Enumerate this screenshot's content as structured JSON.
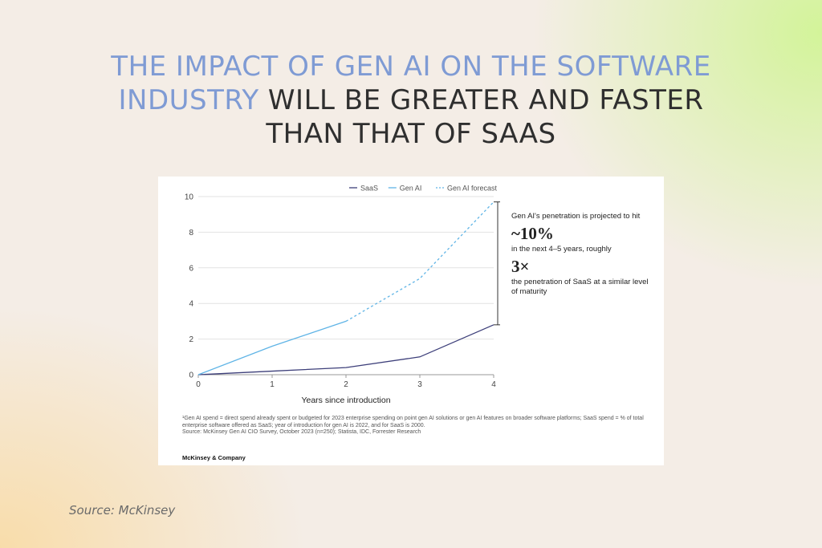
{
  "headline": {
    "highlight": "THE IMPACT OF GEN AI ON THE SOFTWARE INDUSTRY",
    "rest": " WILL BE GREATER AND FASTER THAN THAT OF SAAS"
  },
  "colors": {
    "highlight": "#7f9bd4",
    "saas": "#3d3f7a",
    "gen_ai": "#5fb4e6",
    "forecast": "#5fb4e6"
  },
  "chart_data": {
    "type": "line",
    "xlabel": "Years since introduction",
    "ylabel": "",
    "x": [
      0,
      1,
      2,
      3,
      4
    ],
    "xlim": [
      0,
      4
    ],
    "ylim": [
      0,
      10
    ],
    "yticks": [
      0,
      2,
      4,
      6,
      8,
      10
    ],
    "xticks": [
      0,
      1,
      2,
      3,
      4
    ],
    "grid": true,
    "legend_position": "top",
    "series": [
      {
        "name": "SaaS",
        "x": [
          0,
          1,
          2,
          3,
          4
        ],
        "values": [
          0,
          0.2,
          0.4,
          1.0,
          2.8
        ],
        "style": "solid"
      },
      {
        "name": "Gen AI",
        "x": [
          0,
          1,
          2
        ],
        "values": [
          0,
          1.6,
          3.0
        ],
        "style": "solid"
      },
      {
        "name": "Gen AI forecast",
        "x": [
          2,
          3,
          4
        ],
        "values": [
          3.0,
          5.4,
          9.7
        ],
        "style": "dashed"
      }
    ]
  },
  "annotation": {
    "line1": "Gen AI's penetration is projected to hit",
    "big1": "~10%",
    "line2": "in the next 4–5 years, roughly",
    "big2": "3×",
    "line3": "the penetration of SaaS at a similar level of maturity"
  },
  "footnote": {
    "line1": "¹Gen AI spend = direct spend already spent or budgeted for 2023 enterprise spending on point gen AI solutions or gen AI features on broader software platforms; SaaS spend = % of total enterprise software offered as SaaS; year of introduction for gen AI is 2022, and for SaaS is 2000.",
    "line2": "Source: McKinsey Gen AI CIO Survey, October 2023 (n=250); Statista, IDC, Forrester Research"
  },
  "brand": "McKinsey & Company",
  "source": "Source: McKinsey"
}
